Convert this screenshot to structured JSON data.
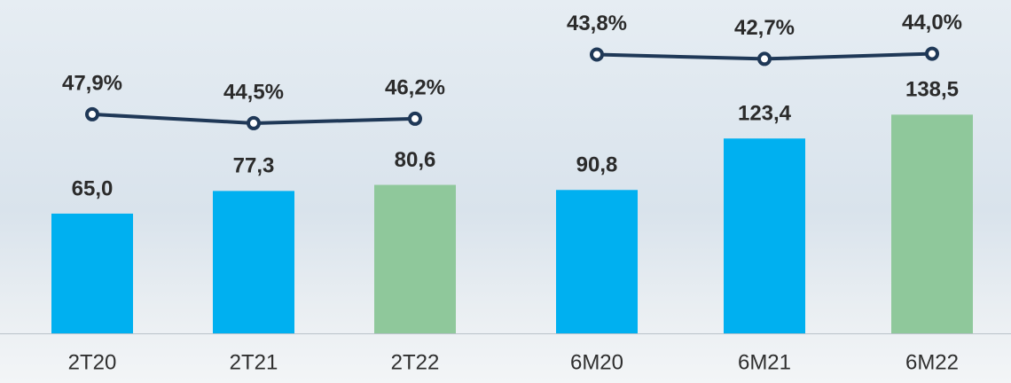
{
  "chart_data": [
    {
      "type": "bar",
      "categories": [
        "2T20",
        "2T21",
        "2T22"
      ],
      "ylim": [
        0,
        180
      ],
      "y2lim": [
        -36,
        91
      ],
      "series": [
        {
          "type": "bar",
          "values": [
            65.0,
            77.3,
            80.6
          ],
          "value_labels": [
            "65,0",
            "77,3",
            "80,6"
          ],
          "colors": [
            "#00b0f0",
            "#00b0f0",
            "#8fc89b"
          ]
        },
        {
          "type": "line",
          "axis": "y2",
          "values": [
            47.9,
            44.5,
            46.2
          ],
          "value_labels": [
            "47,9%",
            "44,5%",
            "46,2%"
          ],
          "color": "#1f3857"
        }
      ]
    },
    {
      "type": "bar",
      "categories": [
        "6M20",
        "6M21",
        "6M22"
      ],
      "ylim": [
        0,
        210
      ],
      "y2lim": [
        -26,
        57
      ],
      "series": [
        {
          "type": "bar",
          "values": [
            90.8,
            123.4,
            138.5
          ],
          "value_labels": [
            "90,8",
            "123,4",
            "138,5"
          ],
          "colors": [
            "#00b0f0",
            "#00b0f0",
            "#8fc89b"
          ]
        },
        {
          "type": "line",
          "axis": "y2",
          "values": [
            43.8,
            42.7,
            44.0
          ],
          "value_labels": [
            "43,8%",
            "42,7%",
            "44,0%"
          ],
          "color": "#1f3857"
        }
      ]
    }
  ]
}
